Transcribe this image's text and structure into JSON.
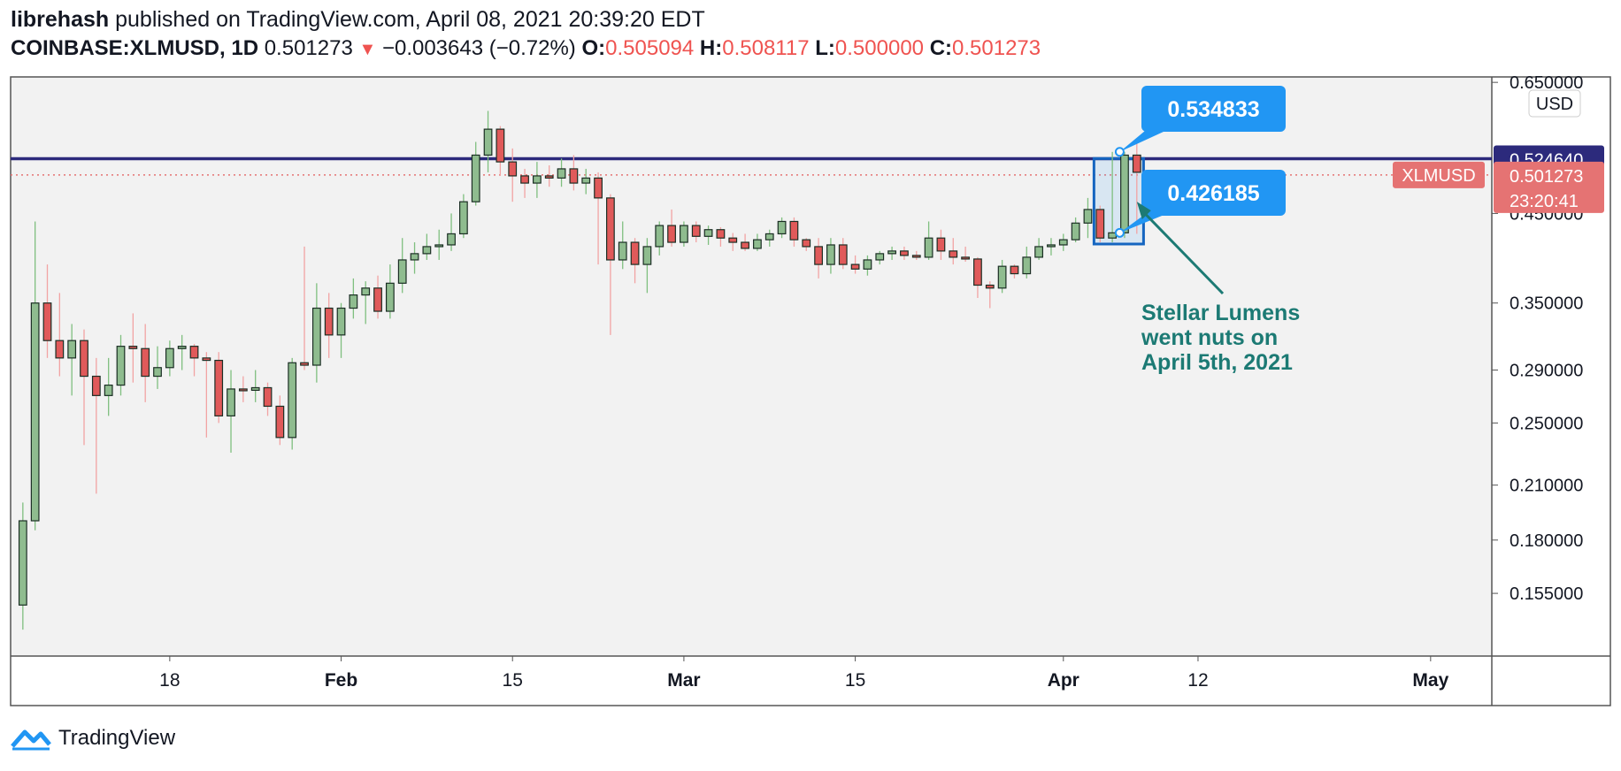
{
  "header": {
    "author": "librehash",
    "published": "published on TradingView.com, April 08, 2021 20:39:20 EDT",
    "symbol": "COINBASE:XLMUSD, 1D",
    "last": "0.501273",
    "down_arrow": "▼",
    "change": "−0.003643 (−0.72%)",
    "o_label": "O:",
    "o_value": "0.505094",
    "h_label": "H:",
    "h_value": "0.508117",
    "l_label": "L:",
    "l_value": "0.500000",
    "c_label": "C:",
    "c_value": "0.501273"
  },
  "footer": {
    "brand": "TradingView",
    "logo_icon": "tradingview-logo-icon"
  },
  "colors": {
    "up": "#8fbc8f",
    "down": "#e05a5a",
    "outline": "#1b2e24",
    "hline": "#2c2a7c",
    "callout": "#2196f3",
    "annotation": "#1c7a74",
    "price_tag": "#e57373",
    "background": "#f2f2f2"
  },
  "chart_data": {
    "type": "candlestick",
    "symbol": "XLMUSD",
    "currency": "USD",
    "log_scale": true,
    "ylim": [
      0.13,
      0.66
    ],
    "y_ticks": [
      "0.650000",
      "0.450000",
      "0.350000",
      "0.290000",
      "0.250000",
      "0.210000",
      "0.180000",
      "0.155000"
    ],
    "x_tick_labels": [
      "18",
      "Feb",
      "15",
      "Mar",
      "15",
      "Apr",
      "12",
      "May"
    ],
    "x_range": [
      "2021-01-05",
      "2021-05-06"
    ],
    "candles": [
      [
        "2021-01-06",
        0.15,
        0.2,
        0.14,
        0.19
      ],
      [
        "2021-01-07",
        0.19,
        0.44,
        0.185,
        0.35
      ],
      [
        "2021-01-08",
        0.35,
        0.39,
        0.3,
        0.315
      ],
      [
        "2021-01-09",
        0.315,
        0.36,
        0.285,
        0.3
      ],
      [
        "2021-01-10",
        0.3,
        0.33,
        0.27,
        0.315
      ],
      [
        "2021-01-11",
        0.315,
        0.325,
        0.235,
        0.285
      ],
      [
        "2021-01-12",
        0.285,
        0.3,
        0.205,
        0.27
      ],
      [
        "2021-01-13",
        0.27,
        0.3,
        0.255,
        0.278
      ],
      [
        "2021-01-14",
        0.278,
        0.32,
        0.27,
        0.31
      ],
      [
        "2021-01-15",
        0.31,
        0.34,
        0.28,
        0.308
      ],
      [
        "2021-01-16",
        0.308,
        0.33,
        0.265,
        0.285
      ],
      [
        "2021-01-17",
        0.285,
        0.31,
        0.275,
        0.292
      ],
      [
        "2021-01-18",
        0.292,
        0.315,
        0.285,
        0.308
      ],
      [
        "2021-01-19",
        0.308,
        0.32,
        0.29,
        0.31
      ],
      [
        "2021-01-20",
        0.31,
        0.312,
        0.285,
        0.3
      ],
      [
        "2021-01-21",
        0.3,
        0.305,
        0.24,
        0.298
      ],
      [
        "2021-01-22",
        0.298,
        0.305,
        0.25,
        0.255
      ],
      [
        "2021-01-23",
        0.255,
        0.29,
        0.23,
        0.275
      ],
      [
        "2021-01-24",
        0.275,
        0.285,
        0.265,
        0.274
      ],
      [
        "2021-01-25",
        0.274,
        0.29,
        0.265,
        0.276
      ],
      [
        "2021-01-26",
        0.276,
        0.28,
        0.255,
        0.262
      ],
      [
        "2021-01-27",
        0.262,
        0.27,
        0.235,
        0.24
      ],
      [
        "2021-01-28",
        0.24,
        0.3,
        0.232,
        0.296
      ],
      [
        "2021-01-29",
        0.296,
        0.41,
        0.29,
        0.294
      ],
      [
        "2021-01-30",
        0.294,
        0.37,
        0.28,
        0.345
      ],
      [
        "2021-01-31",
        0.345,
        0.36,
        0.3,
        0.32
      ],
      [
        "2021-02-01",
        0.32,
        0.35,
        0.3,
        0.345
      ],
      [
        "2021-02-02",
        0.345,
        0.375,
        0.335,
        0.358
      ],
      [
        "2021-02-03",
        0.358,
        0.372,
        0.33,
        0.365
      ],
      [
        "2021-02-04",
        0.365,
        0.378,
        0.335,
        0.342
      ],
      [
        "2021-02-05",
        0.342,
        0.39,
        0.335,
        0.37
      ],
      [
        "2021-02-06",
        0.37,
        0.42,
        0.36,
        0.395
      ],
      [
        "2021-02-07",
        0.395,
        0.415,
        0.38,
        0.402
      ],
      [
        "2021-02-08",
        0.402,
        0.425,
        0.395,
        0.41
      ],
      [
        "2021-02-09",
        0.41,
        0.43,
        0.395,
        0.412
      ],
      [
        "2021-02-10",
        0.412,
        0.45,
        0.405,
        0.425
      ],
      [
        "2021-02-11",
        0.425,
        0.475,
        0.42,
        0.465
      ],
      [
        "2021-02-12",
        0.465,
        0.55,
        0.46,
        0.53
      ],
      [
        "2021-02-13",
        0.53,
        0.6,
        0.505,
        0.57
      ],
      [
        "2021-02-14",
        0.57,
        0.575,
        0.5,
        0.52
      ],
      [
        "2021-02-15",
        0.52,
        0.54,
        0.465,
        0.5
      ],
      [
        "2021-02-16",
        0.5,
        0.51,
        0.47,
        0.49
      ],
      [
        "2021-02-17",
        0.49,
        0.52,
        0.47,
        0.5
      ],
      [
        "2021-02-18",
        0.5,
        0.515,
        0.485,
        0.497
      ],
      [
        "2021-02-19",
        0.497,
        0.525,
        0.485,
        0.51
      ],
      [
        "2021-02-20",
        0.51,
        0.53,
        0.48,
        0.49
      ],
      [
        "2021-02-21",
        0.49,
        0.51,
        0.475,
        0.497
      ],
      [
        "2021-02-22",
        0.497,
        0.505,
        0.39,
        0.47
      ],
      [
        "2021-02-23",
        0.47,
        0.475,
        0.32,
        0.395
      ],
      [
        "2021-02-24",
        0.395,
        0.44,
        0.385,
        0.415
      ],
      [
        "2021-02-25",
        0.415,
        0.42,
        0.37,
        0.39
      ],
      [
        "2021-02-26",
        0.39,
        0.42,
        0.36,
        0.41
      ],
      [
        "2021-02-27",
        0.41,
        0.44,
        0.4,
        0.435
      ],
      [
        "2021-02-28",
        0.435,
        0.455,
        0.41,
        0.415
      ],
      [
        "2021-03-01",
        0.415,
        0.44,
        0.41,
        0.435
      ],
      [
        "2021-03-02",
        0.435,
        0.44,
        0.415,
        0.422
      ],
      [
        "2021-03-03",
        0.422,
        0.435,
        0.412,
        0.43
      ],
      [
        "2021-03-04",
        0.43,
        0.433,
        0.41,
        0.42
      ],
      [
        "2021-03-05",
        0.42,
        0.426,
        0.405,
        0.415
      ],
      [
        "2021-03-06",
        0.415,
        0.425,
        0.405,
        0.408
      ],
      [
        "2021-03-07",
        0.408,
        0.425,
        0.405,
        0.418
      ],
      [
        "2021-03-08",
        0.418,
        0.43,
        0.41,
        0.425
      ],
      [
        "2021-03-09",
        0.425,
        0.445,
        0.42,
        0.44
      ],
      [
        "2021-03-10",
        0.44,
        0.445,
        0.41,
        0.418
      ],
      [
        "2021-03-11",
        0.418,
        0.42,
        0.405,
        0.41
      ],
      [
        "2021-03-12",
        0.41,
        0.42,
        0.375,
        0.39
      ],
      [
        "2021-03-13",
        0.39,
        0.42,
        0.38,
        0.412
      ],
      [
        "2021-03-14",
        0.412,
        0.42,
        0.385,
        0.39
      ],
      [
        "2021-03-15",
        0.39,
        0.4,
        0.38,
        0.385
      ],
      [
        "2021-03-16",
        0.385,
        0.4,
        0.378,
        0.395
      ],
      [
        "2021-03-17",
        0.395,
        0.405,
        0.39,
        0.402
      ],
      [
        "2021-03-18",
        0.402,
        0.41,
        0.395,
        0.405
      ],
      [
        "2021-03-19",
        0.405,
        0.41,
        0.395,
        0.4
      ],
      [
        "2021-03-20",
        0.4,
        0.405,
        0.395,
        0.398
      ],
      [
        "2021-03-21",
        0.398,
        0.44,
        0.395,
        0.42
      ],
      [
        "2021-03-22",
        0.42,
        0.43,
        0.395,
        0.405
      ],
      [
        "2021-03-23",
        0.405,
        0.42,
        0.39,
        0.398
      ],
      [
        "2021-03-24",
        0.398,
        0.41,
        0.393,
        0.396
      ],
      [
        "2021-03-25",
        0.396,
        0.398,
        0.355,
        0.368
      ],
      [
        "2021-03-26",
        0.368,
        0.372,
        0.345,
        0.365
      ],
      [
        "2021-03-27",
        0.365,
        0.395,
        0.36,
        0.388
      ],
      [
        "2021-03-28",
        0.388,
        0.39,
        0.375,
        0.38
      ],
      [
        "2021-03-29",
        0.38,
        0.41,
        0.375,
        0.398
      ],
      [
        "2021-03-30",
        0.398,
        0.42,
        0.395,
        0.41
      ],
      [
        "2021-03-31",
        0.41,
        0.42,
        0.4,
        0.412
      ],
      [
        "2021-04-01",
        0.412,
        0.425,
        0.405,
        0.418
      ],
      [
        "2021-04-02",
        0.418,
        0.445,
        0.415,
        0.438
      ],
      [
        "2021-04-03",
        0.438,
        0.47,
        0.42,
        0.455
      ],
      [
        "2021-04-04",
        0.455,
        0.46,
        0.415,
        0.42
      ],
      [
        "2021-04-05",
        0.42,
        0.534833,
        0.415,
        0.426185
      ],
      [
        "2021-04-06",
        0.426185,
        0.534833,
        0.42,
        0.53
      ],
      [
        "2021-04-07",
        0.53,
        0.55,
        0.425,
        0.505094
      ],
      [
        "2021-04-08",
        0.505094,
        0.508117,
        0.5,
        0.501273
      ]
    ],
    "horizontal_line": {
      "value": 0.52464,
      "label": "0.524640"
    },
    "last_price": {
      "value": 0.501273,
      "symbol_label": "XLMUSD",
      "price_label": "0.501273",
      "countdown": "23:20:41"
    },
    "highlight_box": {
      "from": "2021-04-04",
      "to": "2021-04-07",
      "high": 0.534833,
      "low": 0.426185
    },
    "callouts": [
      {
        "label": "0.534833",
        "date": "2021-04-06",
        "value": 0.534833
      },
      {
        "label": "0.426185",
        "date": "2021-04-06",
        "value": 0.426185
      }
    ],
    "annotation": {
      "lines": [
        "Stellar Lumens",
        "went nuts on",
        "April 5th, 2021"
      ],
      "target_date": "2021-04-07",
      "target_value": 0.465
    }
  }
}
